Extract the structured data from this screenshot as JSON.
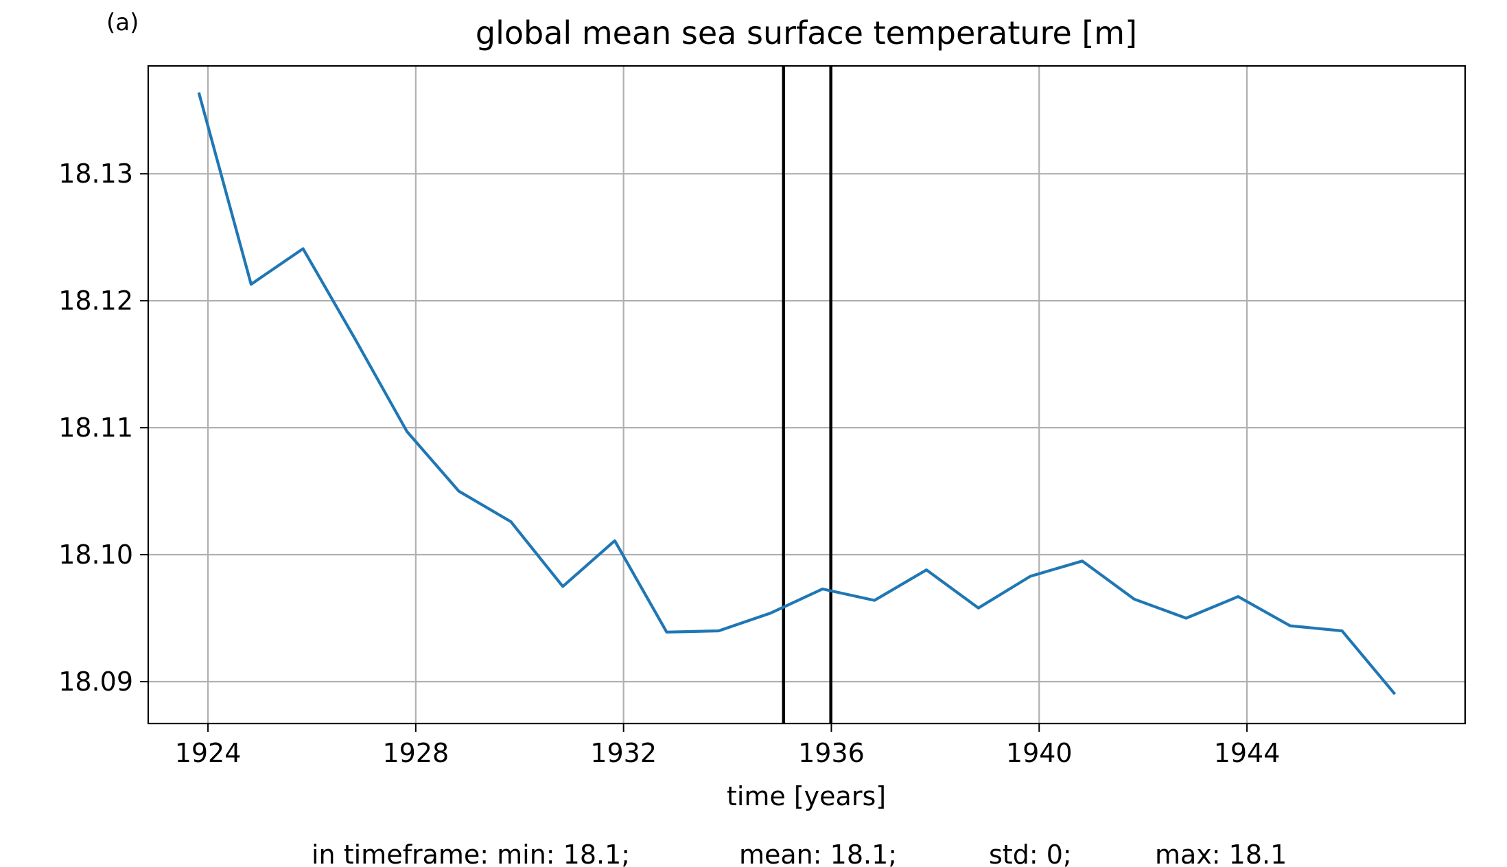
{
  "panel_label": "(a)",
  "chart_data": {
    "type": "line",
    "title": "global mean sea surface temperature [m]",
    "xlabel": "time [years]",
    "ylabel": "",
    "xlim": [
      1922.85,
      1948.2
    ],
    "ylim": [
      18.0867,
      18.1385
    ],
    "xticks": [
      1924,
      1928,
      1932,
      1936,
      1940,
      1944
    ],
    "yticks": [
      18.09,
      18.1,
      18.11,
      18.12,
      18.13
    ],
    "ytick_labels": [
      "18.09",
      "18.10",
      "18.11",
      "18.12",
      "18.13"
    ],
    "grid": true,
    "series": [
      {
        "color": "#1f77b4",
        "x": [
          1923.83,
          1924.83,
          1925.83,
          1926.83,
          1927.83,
          1928.83,
          1929.83,
          1930.83,
          1931.83,
          1932.83,
          1933.83,
          1934.83,
          1935.83,
          1936.83,
          1937.83,
          1938.83,
          1939.83,
          1940.83,
          1941.83,
          1942.83,
          1943.83,
          1944.83,
          1945.83,
          1946.83
        ],
        "values": [
          18.1363,
          18.1213,
          18.1241,
          18.117,
          18.1097,
          18.105,
          18.1026,
          18.0975,
          18.1011,
          18.0939,
          18.094,
          18.0954,
          18.0973,
          18.0964,
          18.0988,
          18.0958,
          18.0983,
          18.0995,
          18.0965,
          18.095,
          18.0967,
          18.0944,
          18.094,
          18.0891
        ]
      }
    ],
    "vlines": [
      1935.08,
      1935.99
    ],
    "vline_color": "#000000"
  },
  "stats": {
    "min": "in timeframe: min: 18.1;",
    "mean": "mean: 18.1;",
    "std": "std: 0;",
    "max": "max: 18.1"
  }
}
